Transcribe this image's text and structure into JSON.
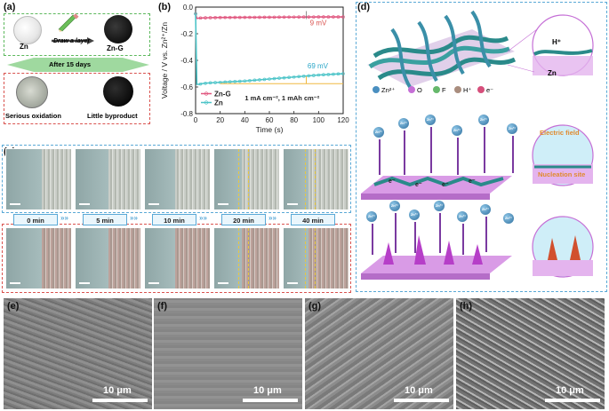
{
  "panel_a": {
    "label": "(a)",
    "zn_label": "Zn",
    "action_label": "Draw a layer",
    "zng_label": "Zn-G",
    "days_label": "After 15 days",
    "oxidation_label": "Serious oxidation",
    "byproduct_label": "Little byproduct",
    "colors": {
      "top_border": "#5cb85c",
      "bottom_border": "#d9534f",
      "band": "#8fd18f"
    }
  },
  "panel_b": {
    "label": "(b)",
    "annot_9mv": "9 mV",
    "annot_69mv": "69 mV",
    "condition": "1 mA cm⁻², 1 mAh cm⁻²",
    "colors": {
      "zng": "#e0577f",
      "zn": "#4cc4c8",
      "annot": "#d9534f",
      "annot2": "#2aa6c8",
      "line": "#f0b840"
    }
  },
  "chart_data": {
    "type": "line",
    "xlabel": "Time (s)",
    "ylabel": "Voltage / V vs. Zn²⁺/Zn",
    "xlim": [
      0,
      120
    ],
    "ylim": [
      -0.8,
      0.0
    ],
    "xticks": [
      "0",
      "20",
      "40",
      "60",
      "80",
      "100",
      "120"
    ],
    "yticks": [
      "0.0",
      "-0.2",
      "-0.4",
      "-0.6",
      "-0.8"
    ],
    "series": [
      {
        "name": "Zn-G",
        "x": [
          0,
          1,
          3,
          10,
          20,
          40,
          60,
          80,
          100,
          120
        ],
        "y": [
          -0.05,
          -0.085,
          -0.082,
          -0.08,
          -0.078,
          -0.077,
          -0.076,
          -0.075,
          -0.074,
          -0.074
        ]
      },
      {
        "name": "Zn",
        "x": [
          0,
          1,
          3,
          5,
          10,
          20,
          40,
          60,
          80,
          100,
          120
        ],
        "y": [
          -0.05,
          -0.58,
          -0.58,
          -0.575,
          -0.57,
          -0.565,
          -0.555,
          -0.54,
          -0.525,
          -0.51,
          -0.5
        ]
      }
    ]
  },
  "panel_c": {
    "label": "(c)",
    "times": [
      "0 min",
      "5 min",
      "10 min",
      "20 min",
      "40 min"
    ],
    "colors": {
      "top_border": "#5aa9d6",
      "bottom_border": "#d9534f"
    }
  },
  "panel_d": {
    "label": "(d)",
    "legend": [
      "Zn²⁺",
      "O",
      "F",
      "H⁺",
      "e⁻"
    ],
    "ion_label": "Zn²⁺",
    "h_label": "H⁺",
    "zn_label": "Zn",
    "electric_field_label": "Electric field",
    "nucleation_label": "Nucleation site",
    "electron_label": "e⁻",
    "colors": {
      "border": "#5aa9d6",
      "ion": "#2e6f9e",
      "substrate": "#c56fd6"
    }
  },
  "panel_sem": [
    {
      "label": "(e)",
      "scale": "10 μm"
    },
    {
      "label": "(f)",
      "scale": "10 μm"
    },
    {
      "label": "(g)",
      "scale": "10 μm"
    },
    {
      "label": "(h)",
      "scale": "10 μm"
    }
  ]
}
